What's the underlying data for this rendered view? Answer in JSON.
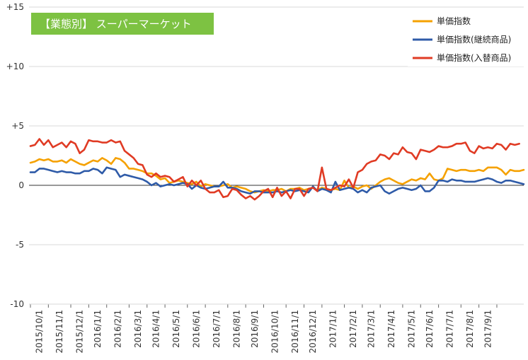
{
  "chart_data": {
    "type": "line",
    "title": "【業態別】 スーパーマーケット",
    "xlabel": "",
    "ylabel": "",
    "ylim": [
      -10,
      15
    ],
    "y_ticks": [
      {
        "value": 15,
        "label": "+15"
      },
      {
        "value": 10,
        "label": "+10"
      },
      {
        "value": 5,
        "label": "+5"
      },
      {
        "value": 0,
        "label": "0"
      },
      {
        "value": -5,
        "label": "-5"
      },
      {
        "value": -10,
        "label": "-10"
      }
    ],
    "x_tick_labels": [
      "2015/10/1",
      "2015/11/1",
      "2015/12/1",
      "2016/1/1",
      "2016/2/1",
      "2016/3/1",
      "2016/4/1",
      "2016/5/1",
      "2016/6/1",
      "2016/7/1",
      "2016/8/1",
      "2016/9/1",
      "2016/10/1",
      "2016/11/1",
      "2016/12/1",
      "2017/1/1",
      "2017/2/1",
      "2017/3/1",
      "2017/4/1",
      "2017/5/1",
      "2017/6/1",
      "2017/7/1",
      "2017/8/1",
      "2017/9/1"
    ],
    "x_ticks_week_index": [
      0,
      4,
      9,
      13,
      17,
      22,
      26,
      30,
      35,
      39,
      44,
      48,
      52,
      57,
      61,
      65,
      70,
      74,
      78,
      83,
      87,
      91,
      96,
      100
    ],
    "x_ticks_last_week_index": 104,
    "grid": {
      "horizontal": true,
      "vertical": false
    },
    "legend_position": "top-right",
    "series": [
      {
        "name": "単価指数",
        "color": "#f5a100",
        "values": [
          1.9,
          2.0,
          2.2,
          2.1,
          2.2,
          2.0,
          2.0,
          2.1,
          1.9,
          2.2,
          2.0,
          1.8,
          1.7,
          1.9,
          2.1,
          2.0,
          2.3,
          2.1,
          1.8,
          2.3,
          2.2,
          1.9,
          1.4,
          1.4,
          1.3,
          1.2,
          1.0,
          1.0,
          0.8,
          0.5,
          0.6,
          0.2,
          0.3,
          0.4,
          0.3,
          0.2,
          0.1,
          0.3,
          -0.1,
          0.1,
          0.0,
          -0.1,
          -0.1,
          0.0,
          0.1,
          -0.2,
          -0.1,
          -0.2,
          -0.3,
          -0.5,
          -0.6,
          -0.5,
          -0.4,
          -0.5,
          -0.4,
          -0.4,
          -0.3,
          -0.5,
          -0.3,
          -0.3,
          -0.2,
          -0.4,
          -0.3,
          -0.2,
          -0.4,
          -0.2,
          -0.3,
          -0.4,
          -0.3,
          -0.4,
          0.4,
          -0.2,
          -0.1,
          -0.3,
          -0.1,
          0.0,
          -0.3,
          0.0,
          0.3,
          0.5,
          0.6,
          0.4,
          0.2,
          0.1,
          0.3,
          0.5,
          0.4,
          0.6,
          0.5,
          1.0,
          0.5,
          0.4,
          0.6,
          1.4,
          1.3,
          1.2,
          1.3,
          1.3,
          1.2,
          1.2,
          1.3,
          1.2,
          1.5,
          1.5,
          1.5,
          1.3,
          0.9,
          1.3,
          1.2,
          1.2,
          1.3
        ]
      },
      {
        "name": "単価指数(継続商品)",
        "color": "#2f5ba8",
        "values": [
          1.1,
          1.1,
          1.4,
          1.4,
          1.3,
          1.2,
          1.1,
          1.2,
          1.1,
          1.1,
          1.0,
          1.0,
          1.2,
          1.2,
          1.4,
          1.3,
          1.0,
          1.5,
          1.4,
          1.3,
          0.7,
          0.9,
          0.8,
          0.7,
          0.6,
          0.5,
          0.3,
          0.0,
          0.2,
          -0.1,
          0.0,
          0.1,
          0.0,
          0.1,
          0.2,
          0.1,
          -0.3,
          0.0,
          -0.2,
          -0.3,
          -0.2,
          -0.1,
          -0.1,
          0.3,
          -0.2,
          -0.2,
          -0.3,
          -0.5,
          -0.6,
          -0.7,
          -0.5,
          -0.5,
          -0.6,
          -0.6,
          -0.6,
          -0.5,
          -0.6,
          -0.5,
          -0.4,
          -0.5,
          -0.4,
          -0.5,
          -0.6,
          -0.1,
          -0.5,
          -0.3,
          -0.4,
          -0.6,
          0.3,
          -0.4,
          -0.3,
          -0.2,
          -0.3,
          -0.6,
          -0.4,
          -0.6,
          -0.2,
          -0.1,
          0.0,
          -0.5,
          -0.7,
          -0.5,
          -0.3,
          -0.2,
          -0.3,
          -0.4,
          -0.3,
          0.0,
          -0.5,
          -0.5,
          -0.2,
          0.4,
          0.4,
          0.3,
          0.5,
          0.4,
          0.4,
          0.3,
          0.3,
          0.3,
          0.4,
          0.5,
          0.6,
          0.5,
          0.3,
          0.2,
          0.4,
          0.4,
          0.3,
          0.2,
          0.1
        ]
      },
      {
        "name": "単価指数(入替商品)",
        "color": "#e03b24",
        "values": [
          3.3,
          3.4,
          3.9,
          3.4,
          3.8,
          3.2,
          3.4,
          3.6,
          3.2,
          3.7,
          3.5,
          2.7,
          3.0,
          3.8,
          3.7,
          3.7,
          3.6,
          3.6,
          3.8,
          3.6,
          3.7,
          2.9,
          2.6,
          2.3,
          1.8,
          1.7,
          0.9,
          0.7,
          1.0,
          0.7,
          0.8,
          0.7,
          0.3,
          0.5,
          0.7,
          -0.1,
          0.4,
          0.0,
          0.4,
          -0.3,
          -0.6,
          -0.6,
          -0.4,
          -1.0,
          -0.9,
          -0.3,
          -0.4,
          -0.8,
          -1.1,
          -0.9,
          -1.2,
          -0.9,
          -0.5,
          -0.3,
          -1.0,
          -0.2,
          -0.9,
          -0.5,
          -1.1,
          -0.3,
          -0.3,
          -0.9,
          -0.3,
          -0.2,
          -0.5,
          1.5,
          -0.3,
          -0.4,
          -0.2,
          0.0,
          -0.1,
          0.5,
          -0.2,
          1.1,
          1.3,
          1.8,
          2.0,
          2.1,
          2.6,
          2.5,
          2.2,
          2.7,
          2.6,
          3.2,
          2.8,
          2.7,
          2.2,
          3.0,
          2.9,
          2.8,
          3.0,
          3.3,
          3.2,
          3.2,
          3.3,
          3.5,
          3.5,
          3.6,
          2.9,
          2.7,
          3.3,
          3.1,
          3.2,
          3.1,
          3.5,
          3.4,
          3.0,
          3.5,
          3.4,
          3.5
        ]
      }
    ]
  }
}
